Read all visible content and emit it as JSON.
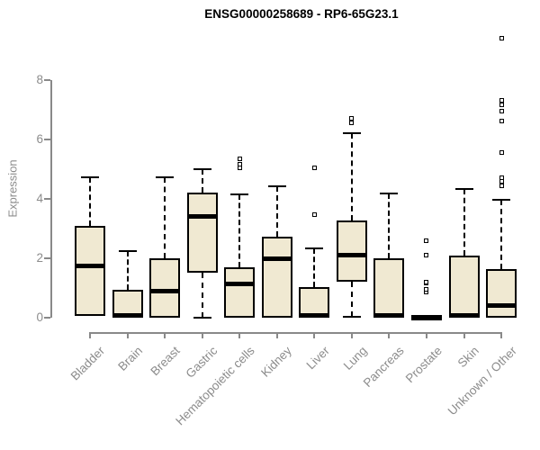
{
  "chart_data": {
    "type": "boxplot",
    "title": "ENSG00000258689 - RP6-65G23.1",
    "ylabel": "Expression",
    "xlabel": "",
    "yticks": [
      0,
      2,
      4,
      6,
      8
    ],
    "ylim": [
      0,
      9.5
    ],
    "grid": false,
    "legend": false,
    "categories": [
      "Bladder",
      "Brain",
      "Breast",
      "Gastric",
      "Hematopoietic cells",
      "Kidney",
      "Liver",
      "Lung",
      "Pancreas",
      "Prostate",
      "Skin",
      "Unknown / Other"
    ],
    "boxes": [
      {
        "name": "Bladder",
        "whisker_low": 0.05,
        "q1": 0.05,
        "median": 1.75,
        "q3": 3.1,
        "whisker_high": 4.73,
        "outliers": []
      },
      {
        "name": "Brain",
        "whisker_low": 0,
        "q1": 0,
        "median": 0.07,
        "q3": 0.95,
        "whisker_high": 2.25,
        "outliers": []
      },
      {
        "name": "Breast",
        "whisker_low": 0,
        "q1": 0,
        "median": 0.88,
        "q3": 2.0,
        "whisker_high": 4.72,
        "outliers": []
      },
      {
        "name": "Gastric",
        "whisker_low": 0,
        "q1": 1.51,
        "median": 3.39,
        "q3": 4.22,
        "whisker_high": 5.0,
        "outliers": []
      },
      {
        "name": "Hematopoietic cells",
        "whisker_low": 0,
        "q1": 0,
        "median": 1.13,
        "q3": 1.7,
        "whisker_high": 4.15,
        "outliers": [
          5.03,
          5.15,
          5.33
        ]
      },
      {
        "name": "Kidney",
        "whisker_low": 0,
        "q1": 0,
        "median": 1.98,
        "q3": 2.73,
        "whisker_high": 4.42,
        "outliers": []
      },
      {
        "name": "Liver",
        "whisker_low": 0,
        "q1": 0,
        "median": 0.07,
        "q3": 1.03,
        "whisker_high": 2.33,
        "outliers": [
          3.45,
          5.05
        ]
      },
      {
        "name": "Lung",
        "whisker_low": 0.03,
        "q1": 1.2,
        "median": 2.1,
        "q3": 3.27,
        "whisker_high": 6.2,
        "outliers": [
          6.55,
          6.7
        ]
      },
      {
        "name": "Pancreas",
        "whisker_low": 0,
        "q1": 0,
        "median": 0.07,
        "q3": 2.0,
        "whisker_high": 4.18,
        "outliers": []
      },
      {
        "name": "Prostate",
        "whisker_low": 0,
        "q1": 0,
        "median": 0.02,
        "q3": 0.04,
        "whisker_high": 0.04,
        "outliers": [
          0.85,
          0.95,
          1.15,
          1.2,
          2.1,
          2.6
        ]
      },
      {
        "name": "Skin",
        "whisker_low": 0,
        "q1": 0,
        "median": 0.07,
        "q3": 2.1,
        "whisker_high": 4.33,
        "outliers": []
      },
      {
        "name": "Unknown / Other",
        "whisker_low": 0,
        "q1": 0,
        "median": 0.4,
        "q3": 1.62,
        "whisker_high": 3.95,
        "outliers": [
          4.42,
          4.57,
          4.72,
          5.55,
          6.6,
          6.95,
          7.15,
          7.3,
          9.38
        ]
      }
    ]
  },
  "colors": {
    "box_fill": "#F0E9D2",
    "box_border": "#000000",
    "median": "#000000",
    "axis": "#898989",
    "tick_label": "#8c8c8c",
    "title": "#000000",
    "background": "#ffffff"
  }
}
